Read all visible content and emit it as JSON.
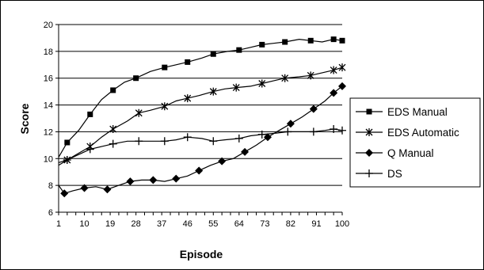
{
  "chart_data": {
    "type": "line",
    "title": "",
    "xlabel": "Episode",
    "ylabel": "Score",
    "xlim": [
      1,
      100
    ],
    "ylim": [
      6,
      20
    ],
    "x_ticks": [
      1,
      10,
      19,
      28,
      37,
      46,
      55,
      64,
      73,
      82,
      91,
      100
    ],
    "y_ticks": [
      6,
      8,
      10,
      12,
      14,
      16,
      18,
      20
    ],
    "grid": "horizontal",
    "legend_position": "right",
    "series": [
      {
        "name": "EDS Manual",
        "marker": "square",
        "x": [
          1,
          4,
          8,
          12,
          16,
          20,
          24,
          28,
          33,
          38,
          42,
          46,
          51,
          55,
          60,
          64,
          68,
          72,
          76,
          80,
          85,
          89,
          93,
          97,
          100
        ],
        "y": [
          10.1,
          11.2,
          12.1,
          13.3,
          14.4,
          15.1,
          15.7,
          16.0,
          16.5,
          16.8,
          17.0,
          17.2,
          17.5,
          17.8,
          18.0,
          18.1,
          18.3,
          18.5,
          18.6,
          18.7,
          18.9,
          18.8,
          18.7,
          18.9,
          18.8
        ]
      },
      {
        "name": "EDS Automatic",
        "marker": "star",
        "x": [
          1,
          4,
          8,
          12,
          16,
          20,
          25,
          29,
          33,
          38,
          42,
          46,
          50,
          55,
          59,
          63,
          68,
          72,
          76,
          80,
          85,
          89,
          93,
          97,
          100
        ],
        "y": [
          9.7,
          9.9,
          10.4,
          10.9,
          11.6,
          12.2,
          12.8,
          13.4,
          13.6,
          13.9,
          14.3,
          14.5,
          14.7,
          15.0,
          15.2,
          15.3,
          15.4,
          15.6,
          15.8,
          16.0,
          16.1,
          16.2,
          16.4,
          16.6,
          16.8
        ]
      },
      {
        "name": "Q Manual",
        "marker": "diamond",
        "x": [
          1,
          3,
          6,
          10,
          14,
          18,
          22,
          26,
          30,
          34,
          38,
          42,
          46,
          50,
          54,
          58,
          62,
          66,
          70,
          74,
          78,
          82,
          86,
          90,
          94,
          97,
          100
        ],
        "y": [
          8.0,
          7.4,
          7.6,
          7.8,
          7.9,
          7.7,
          8.0,
          8.3,
          8.4,
          8.4,
          8.3,
          8.5,
          8.7,
          9.1,
          9.5,
          9.8,
          10.0,
          10.5,
          11.0,
          11.6,
          12.1,
          12.6,
          13.1,
          13.7,
          14.3,
          14.9,
          15.4
        ]
      },
      {
        "name": "DS",
        "marker": "plus",
        "x": [
          1,
          4,
          8,
          12,
          16,
          20,
          25,
          29,
          33,
          38,
          42,
          46,
          51,
          55,
          59,
          64,
          68,
          72,
          77,
          81,
          85,
          90,
          94,
          97,
          100
        ],
        "y": [
          9.5,
          9.9,
          10.3,
          10.7,
          10.9,
          11.1,
          11.3,
          11.3,
          11.3,
          11.3,
          11.4,
          11.6,
          11.5,
          11.3,
          11.4,
          11.5,
          11.7,
          11.8,
          11.9,
          12.0,
          12.0,
          12.0,
          12.1,
          12.2,
          12.1
        ]
      }
    ]
  }
}
